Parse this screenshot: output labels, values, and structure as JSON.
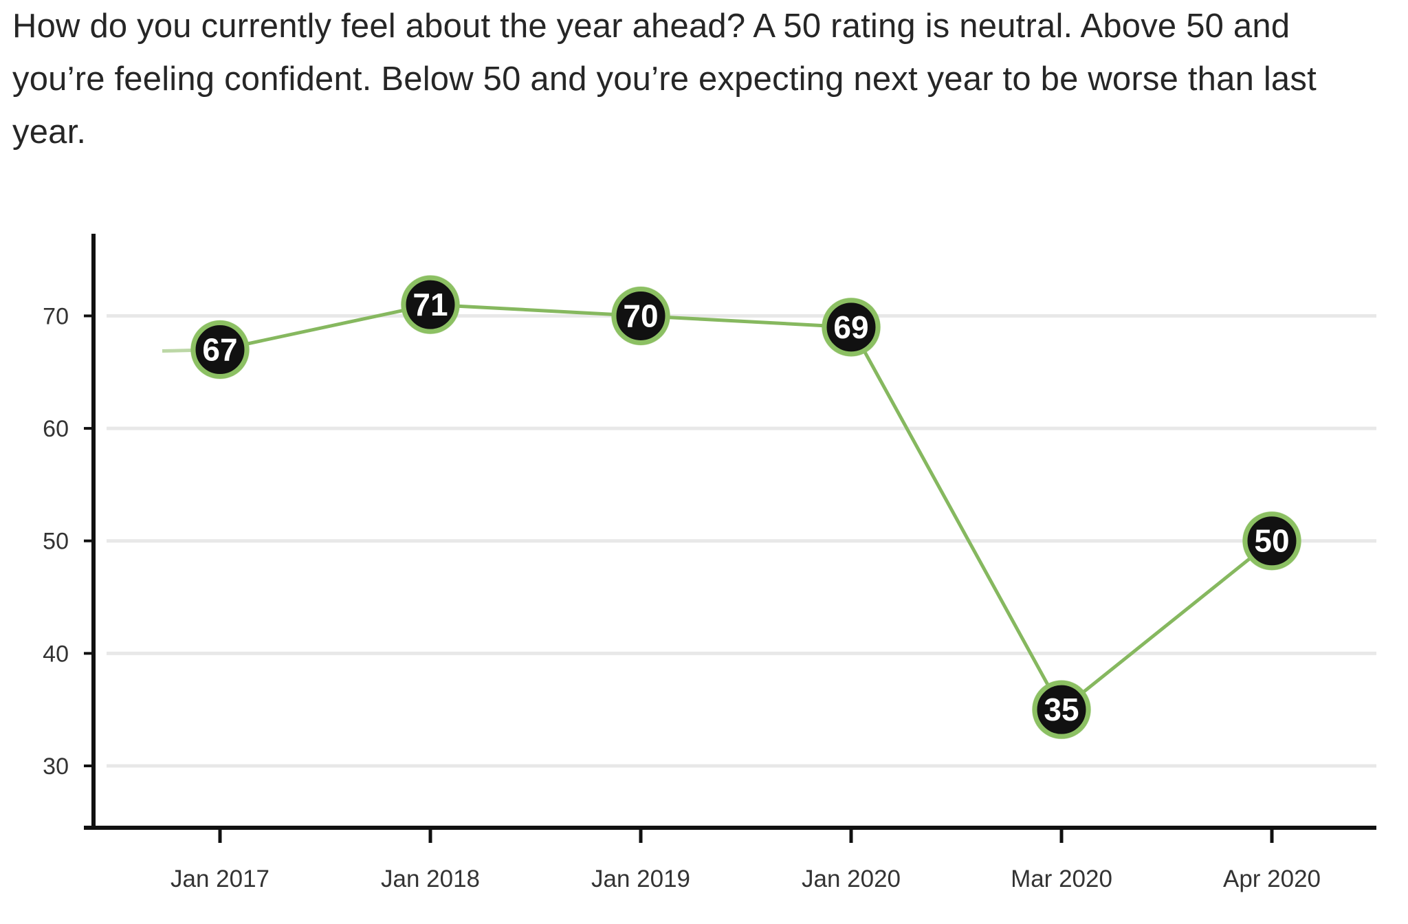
{
  "page": {
    "question_text": "How do you currently feel about the year ahead? A 50 rating is neutral. Above 50 and you’re feeling confident. Below 50 and you’re expecting next year to be worse than last year."
  },
  "colors": {
    "line": "#86b85f",
    "marker_fill": "#111111",
    "marker_ring": "#8cc063",
    "marker_text": "#ffffff",
    "gridline": "#e8e8e8",
    "axis": "#111111"
  },
  "chart_data": {
    "type": "line",
    "categories": [
      "Jan 2017",
      "Jan 2018",
      "Jan 2019",
      "Jan 2020",
      "Mar 2020",
      "Apr 2020"
    ],
    "series": [
      {
        "values": [
          67,
          71,
          70,
          69,
          35,
          50
        ]
      }
    ],
    "data_labels": [
      "67",
      "71",
      "70",
      "69",
      "35",
      "50"
    ],
    "yticks": [
      30,
      40,
      50,
      60,
      70
    ],
    "ytick_labels": [
      "30",
      "40",
      "50",
      "60",
      "70"
    ],
    "ylim": [
      24.5,
      78
    ],
    "grid": true,
    "title": "",
    "xlabel": "",
    "ylabel": "",
    "legend": "none"
  }
}
